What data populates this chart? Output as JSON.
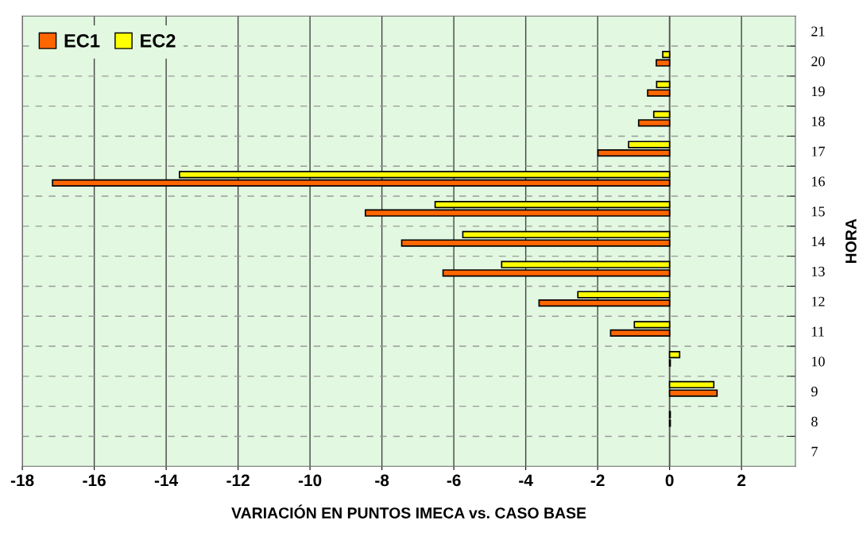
{
  "chart_data": {
    "type": "bar",
    "orientation": "horizontal",
    "xlabel": "VARIACIÓN EN PUNTOS IMECA vs. CASO BASE",
    "ylabel": "HORA",
    "categories": [
      "21",
      "20",
      "19",
      "18",
      "17",
      "16",
      "15",
      "14",
      "13",
      "12",
      "11",
      "10",
      "9",
      "8",
      "7"
    ],
    "series": [
      {
        "name": "EC2",
        "color": "#ffff00",
        "values": [
          null,
          -0.19,
          -0.36,
          -0.44,
          -1.14,
          -13.63,
          -6.52,
          -5.75,
          -4.67,
          -2.55,
          -0.98,
          0.28,
          1.23,
          0.02,
          null
        ]
      },
      {
        "name": "EC1",
        "color": "#ff6600",
        "values": [
          null,
          -0.37,
          -0.61,
          -0.86,
          -1.99,
          -17.16,
          -8.46,
          -7.45,
          -6.3,
          -3.63,
          -1.64,
          0.02,
          1.32,
          0.02,
          null
        ]
      }
    ],
    "xlim": [
      -18,
      3.5
    ],
    "xticks": [
      -18,
      -16,
      -14,
      -12,
      -10,
      -8,
      -6,
      -4,
      -2,
      0,
      2
    ],
    "grid": true,
    "legend": "top left"
  }
}
